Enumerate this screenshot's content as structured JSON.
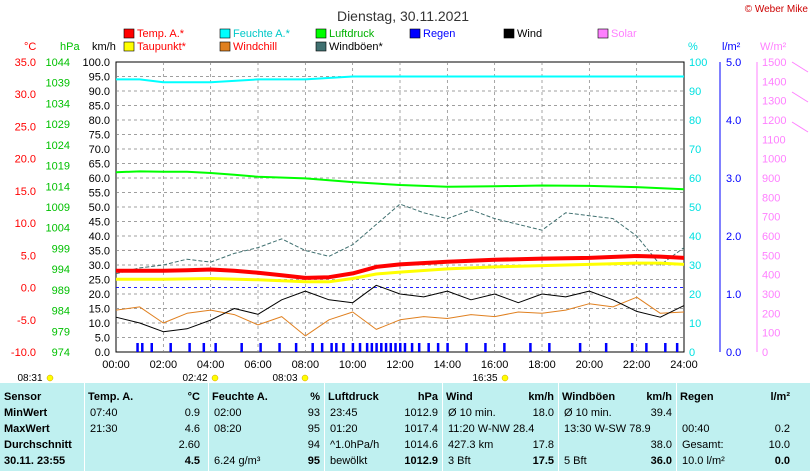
{
  "chart_data": {
    "type": "line",
    "title": "Dienstag, 30.11.2021",
    "watermark": "© Weber Mike",
    "x_ticks": [
      "00:00",
      "02:00",
      "04:00",
      "06:00",
      "08:00",
      "10:00",
      "12:00",
      "14:00",
      "16:00",
      "18:00",
      "20:00",
      "22:00",
      "24:00"
    ],
    "xlim": [
      0,
      24
    ],
    "axes": {
      "temp": {
        "label": "°C",
        "color": "#ff0000",
        "ticks": [
          "35.0",
          "30.0",
          "25.0",
          "20.0",
          "15.0",
          "10.0",
          "5.0",
          "0.0",
          "-5.0",
          "-10.0"
        ],
        "ylim": [
          -10,
          35
        ]
      },
      "hpa": {
        "label": "hPa",
        "color": "#00c000",
        "ticks": [
          "1044",
          "1039",
          "1034",
          "1029",
          "1024",
          "1019",
          "1014",
          "1009",
          "1004",
          "999",
          "994",
          "989",
          "984",
          "979",
          "974"
        ],
        "ylim": [
          974,
          1044
        ]
      },
      "kmh": {
        "label": "km/h",
        "color": "#000000",
        "ticks": [
          "100.0",
          "95.0",
          "90.0",
          "85.0",
          "80.0",
          "75.0",
          "70.0",
          "65.0",
          "60.0",
          "55.0",
          "50.0",
          "45.0",
          "40.0",
          "35.0",
          "30.0",
          "25.0",
          "20.0",
          "15.0",
          "10.0",
          "5.0",
          "0.0"
        ],
        "ylim": [
          0,
          100
        ]
      },
      "pct": {
        "label": "%",
        "color": "#00e0e0",
        "ticks": [
          "100",
          "90",
          "80",
          "70",
          "60",
          "50",
          "40",
          "30",
          "20",
          "10",
          "0"
        ],
        "ylim": [
          0,
          100
        ]
      },
      "rain": {
        "label": "l/m²",
        "color": "#0000ff",
        "ticks": [
          "5.0",
          "4.0",
          "3.0",
          "2.0",
          "1.0",
          "0.0"
        ],
        "ylim": [
          0,
          5
        ]
      },
      "solar": {
        "label": "W/m²",
        "color": "#ff80ff",
        "ticks": [
          "1500",
          "1400",
          "1300",
          "1200",
          "1100",
          "1000",
          "900",
          "800",
          "700",
          "600",
          "500",
          "400",
          "300",
          "200",
          "100",
          "0"
        ],
        "ylim": [
          0,
          1500
        ]
      }
    },
    "legend": [
      {
        "name": "Temp. A.*",
        "color": "#ff0000"
      },
      {
        "name": "Feuchte A.*",
        "color": "#00ffff"
      },
      {
        "name": "Luftdruck",
        "color": "#00ff00"
      },
      {
        "name": "Regen",
        "color": "#0000ff"
      },
      {
        "name": "Wind",
        "color": "#000000"
      },
      {
        "name": "Solar",
        "color": "#ff80ff"
      },
      {
        "name": "Taupunkt*",
        "color": "#ffff00"
      },
      {
        "name": "Windchill",
        "color": "#e08020"
      },
      {
        "name": "Windböen*",
        "color": "#407070"
      }
    ],
    "series": {
      "temp": {
        "axis": "temp",
        "color": "#ff0000",
        "x": [
          0,
          2,
          3,
          4,
          5,
          6,
          7,
          8,
          9,
          10,
          11,
          12,
          14,
          16,
          18,
          20,
          22,
          23,
          24
        ],
        "y": [
          2.6,
          2.6,
          2.7,
          2.8,
          2.6,
          2.3,
          1.9,
          1.5,
          1.6,
          2.2,
          3.2,
          3.6,
          4.0,
          4.3,
          4.5,
          4.6,
          4.9,
          4.8,
          4.6
        ]
      },
      "dew": {
        "axis": "temp",
        "color": "#ffff00",
        "x": [
          0,
          2,
          4,
          6,
          8,
          9,
          10,
          11,
          12,
          14,
          16,
          18,
          20,
          22,
          23,
          24
        ],
        "y": [
          1.3,
          1.3,
          1.4,
          1.2,
          0.9,
          0.9,
          1.4,
          2.1,
          2.4,
          2.9,
          3.2,
          3.4,
          3.6,
          3.8,
          3.8,
          3.6
        ]
      },
      "humidity": {
        "axis": "pct",
        "color": "#00ffff",
        "x": [
          0,
          1,
          2,
          3,
          4,
          6,
          8,
          10,
          12,
          14,
          16,
          18,
          20,
          22,
          24
        ],
        "y": [
          94,
          94,
          93,
          93,
          93,
          94,
          94,
          95,
          95,
          95,
          95,
          95,
          95,
          95,
          95
        ]
      },
      "pressure": {
        "axis": "hpa",
        "color": "#00ff00",
        "x": [
          0,
          1,
          2,
          3,
          4,
          5,
          6,
          8,
          10,
          12,
          14,
          16,
          18,
          20,
          22,
          24
        ],
        "y": [
          1017.4,
          1017.6,
          1017.5,
          1017.5,
          1017.2,
          1016.8,
          1016.3,
          1015.9,
          1015.0,
          1014.3,
          1013.9,
          1014.0,
          1014.2,
          1014.1,
          1013.8,
          1013.3
        ]
      },
      "wind": {
        "axis": "kmh",
        "color": "#000000",
        "x": [
          0,
          1,
          2,
          3,
          4,
          5,
          6,
          7,
          8,
          9,
          10,
          11,
          12,
          13,
          14,
          15,
          16,
          17,
          18,
          19,
          20,
          21,
          22,
          23,
          24
        ],
        "y": [
          12,
          10,
          7,
          8,
          11,
          15,
          13,
          18,
          21,
          18,
          17,
          23,
          20,
          19,
          21,
          18,
          20,
          17,
          20,
          19,
          21,
          18,
          14,
          12,
          16
        ]
      },
      "windchill": {
        "axis": "temp",
        "color": "#e08020",
        "x": [
          0,
          1,
          2,
          3,
          4,
          5,
          6,
          7,
          8,
          9,
          10,
          11,
          12,
          13,
          14,
          15,
          16,
          17,
          18,
          19,
          20,
          21,
          22,
          23,
          24
        ],
        "y": [
          -3.5,
          -3.0,
          -5.5,
          -4.0,
          -3.5,
          -4.2,
          -5.8,
          -4.5,
          -7.5,
          -5.0,
          -3.8,
          -6.5,
          -5.0,
          -4.5,
          -4.8,
          -4.2,
          -4.5,
          -3.8,
          -4.0,
          -3.5,
          -2.5,
          -3.0,
          -1.5,
          -4.0,
          -3.8
        ]
      },
      "gusts": {
        "axis": "kmh",
        "color": "#407070",
        "x": [
          0,
          1,
          2,
          3,
          4,
          5,
          6,
          7,
          8,
          9,
          10,
          11,
          12,
          13,
          14,
          15,
          16,
          17,
          18,
          19,
          20,
          21,
          22,
          23,
          24
        ],
        "y": [
          27,
          29,
          30,
          32,
          31,
          34,
          36,
          39,
          35,
          33,
          37,
          44,
          51,
          48,
          46,
          49,
          46,
          44,
          42,
          48,
          47,
          46,
          40,
          30,
          36
        ]
      }
    },
    "rain_ticks": [
      0.9,
      1.1,
      1.5,
      2.3,
      3.1,
      3.7,
      4.2,
      5.3,
      6.1,
      6.9,
      7.6,
      8.3,
      8.7,
      9.1,
      9.3,
      9.6,
      10.0,
      10.3,
      10.6,
      10.8,
      11.0,
      11.2,
      11.4,
      11.6,
      11.8,
      12.0,
      12.2,
      12.5,
      12.8,
      13.2,
      13.6,
      14.0,
      14.8,
      15.6,
      16.4,
      17.5,
      18.3,
      19.6,
      20.7,
      21.8,
      22.4,
      23.2,
      23.7
    ],
    "events": [
      {
        "label": "08:31",
        "x": 30
      },
      {
        "label": "02:42",
        "x": 195
      },
      {
        "label": "08:03",
        "x": 285
      },
      {
        "label": "16:35",
        "x": 485
      }
    ]
  },
  "table": {
    "cols": [
      {
        "header": "Sensor",
        "unit": "",
        "rows": [
          [
            "MinWert",
            ""
          ],
          [
            "MaxWert",
            ""
          ],
          [
            "Durchschnitt",
            ""
          ],
          [
            "30.11. 23:55",
            ""
          ]
        ]
      },
      {
        "header": "Temp. A.",
        "unit": "°C",
        "rows": [
          [
            "07:40",
            "0.9"
          ],
          [
            "21:30",
            "4.6"
          ],
          [
            "",
            "2.60"
          ],
          [
            "",
            "4.5"
          ]
        ]
      },
      {
        "header": "Feuchte A.",
        "unit": "%",
        "rows": [
          [
            "02:00",
            "93"
          ],
          [
            "08:20",
            "95"
          ],
          [
            "",
            "94"
          ],
          [
            "6.24 g/m³",
            "95"
          ]
        ]
      },
      {
        "header": "Luftdruck",
        "unit": "hPa",
        "rows": [
          [
            "23:45",
            "1012.9"
          ],
          [
            "01:20",
            "1017.4"
          ],
          [
            "^1.0hPa/h",
            "1014.6"
          ],
          [
            "bewölkt",
            "1012.9"
          ]
        ]
      },
      {
        "header": "Wind",
        "unit": "km/h",
        "rows": [
          [
            "Ø 10 min.",
            "18.0"
          ],
          [
            "11:20   W-NW 28.4",
            ""
          ],
          [
            "427.3 km",
            "17.8"
          ],
          [
            "3 Bft",
            "17.5"
          ]
        ]
      },
      {
        "header": "Windböen",
        "unit": "km/h",
        "rows": [
          [
            "Ø 10 min.",
            "39.4"
          ],
          [
            "13:30   W-SW 78.9",
            ""
          ],
          [
            "",
            "38.0"
          ],
          [
            "5 Bft",
            "36.0"
          ]
        ]
      },
      {
        "header": "Regen",
        "unit": "l/m²",
        "rows": [
          [
            "",
            ""
          ],
          [
            "00:40",
            "0.2"
          ],
          [
            "Gesamt:",
            "10.0"
          ],
          [
            "10.0 l/m²",
            "0.0"
          ]
        ]
      }
    ]
  }
}
